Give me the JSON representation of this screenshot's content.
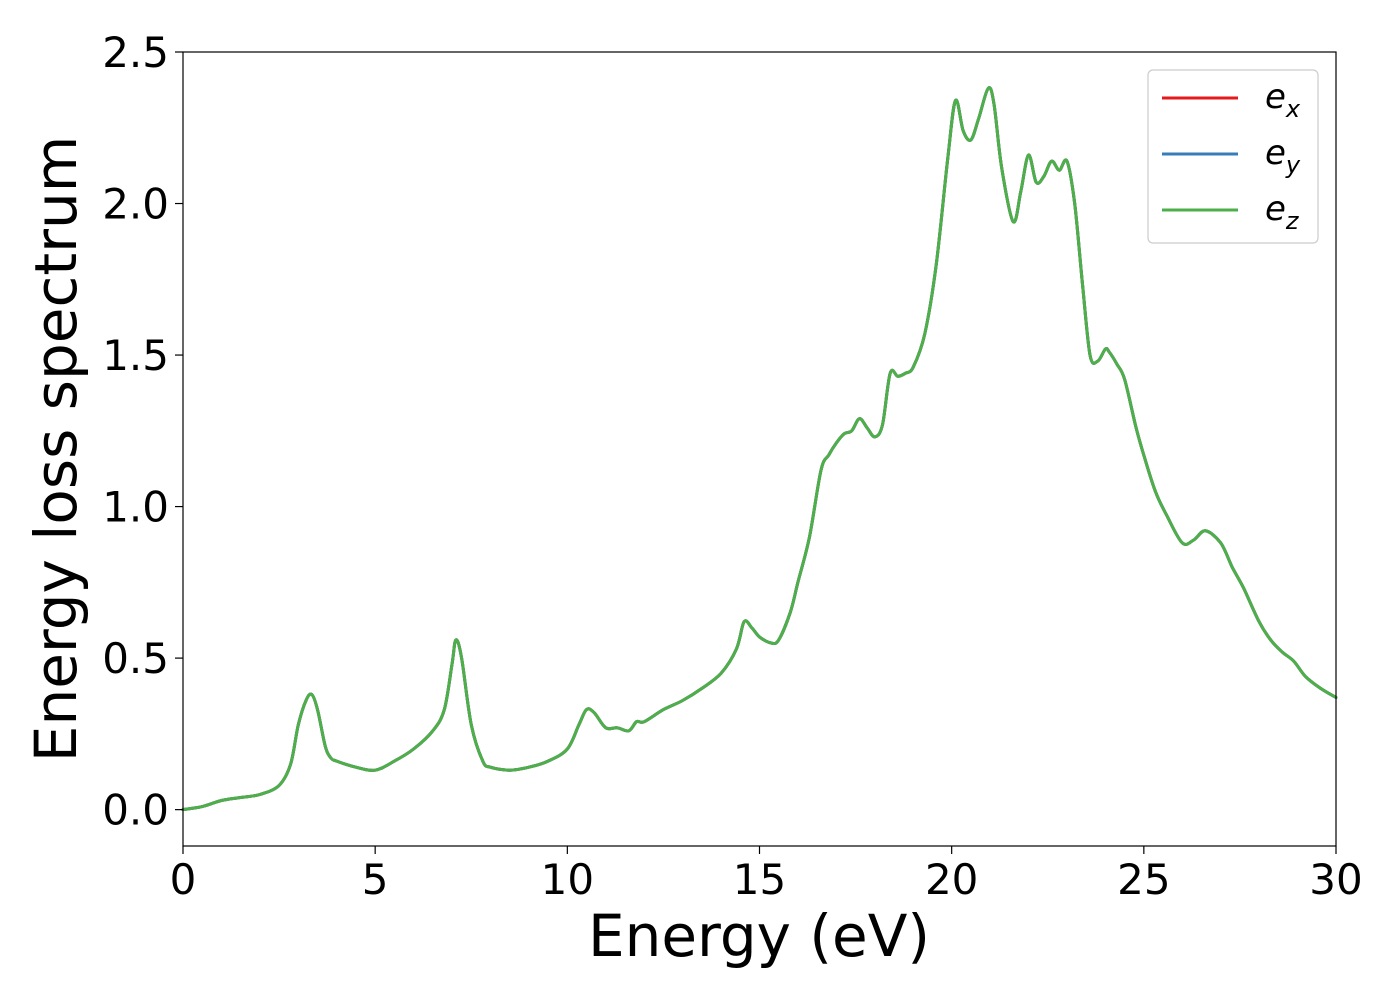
{
  "chart_data": {
    "type": "line",
    "xlabel": "Energy (eV)",
    "ylabel": "Energy loss spectrum",
    "xlim": [
      0,
      30
    ],
    "ylim": [
      -0.12,
      2.5
    ],
    "xticks": [
      0,
      5,
      10,
      15,
      20,
      25,
      30
    ],
    "xtick_labels": [
      "0",
      "5",
      "10",
      "15",
      "20",
      "25",
      "30"
    ],
    "yticks": [
      0.0,
      0.5,
      1.0,
      1.5,
      2.0,
      2.5
    ],
    "ytick_labels": [
      "0.0",
      "0.5",
      "1.0",
      "1.5",
      "2.0",
      "2.5"
    ],
    "grid": false,
    "legend_position": "top-right",
    "x": [
      0,
      0.5,
      1.0,
      1.5,
      2.0,
      2.5,
      2.8,
      3.0,
      3.2,
      3.35,
      3.5,
      3.7,
      3.85,
      4.0,
      4.5,
      5.0,
      5.5,
      6.0,
      6.5,
      6.8,
      7.0,
      7.1,
      7.25,
      7.5,
      7.8,
      8.0,
      8.5,
      9.0,
      9.5,
      10.0,
      10.3,
      10.5,
      10.7,
      11.0,
      11.3,
      11.6,
      11.8,
      12.0,
      12.5,
      13.0,
      13.5,
      14.0,
      14.4,
      14.6,
      14.8,
      15.0,
      15.3,
      15.5,
      15.8,
      16.0,
      16.3,
      16.6,
      16.8,
      17.0,
      17.2,
      17.4,
      17.6,
      17.8,
      18.0,
      18.2,
      18.4,
      18.6,
      18.8,
      19.0,
      19.3,
      19.6,
      19.9,
      20.1,
      20.3,
      20.5,
      20.7,
      20.95,
      21.1,
      21.3,
      21.6,
      21.8,
      22.0,
      22.2,
      22.4,
      22.6,
      22.8,
      23.0,
      23.2,
      23.4,
      23.6,
      23.8,
      24.0,
      24.1,
      24.3,
      24.5,
      24.8,
      25.0,
      25.3,
      25.6,
      26.0,
      26.3,
      26.6,
      27.0,
      27.3,
      27.6,
      28.0,
      28.3,
      28.6,
      28.9,
      29.2,
      29.6,
      30.0
    ],
    "series": [
      {
        "name": "e_x",
        "name_base": "e",
        "name_sub": "x",
        "color": "#e41a1c",
        "values": [
          0.0,
          0.01,
          0.03,
          0.04,
          0.05,
          0.08,
          0.15,
          0.28,
          0.36,
          0.38,
          0.33,
          0.21,
          0.17,
          0.16,
          0.14,
          0.13,
          0.16,
          0.2,
          0.26,
          0.33,
          0.48,
          0.56,
          0.5,
          0.28,
          0.16,
          0.14,
          0.13,
          0.14,
          0.16,
          0.2,
          0.28,
          0.33,
          0.32,
          0.27,
          0.27,
          0.26,
          0.29,
          0.29,
          0.33,
          0.36,
          0.4,
          0.45,
          0.53,
          0.62,
          0.6,
          0.57,
          0.55,
          0.56,
          0.65,
          0.75,
          0.9,
          1.12,
          1.17,
          1.21,
          1.24,
          1.25,
          1.29,
          1.26,
          1.23,
          1.27,
          1.44,
          1.43,
          1.44,
          1.46,
          1.57,
          1.8,
          2.15,
          2.34,
          2.24,
          2.21,
          2.28,
          2.38,
          2.33,
          2.12,
          1.94,
          2.04,
          2.16,
          2.07,
          2.09,
          2.14,
          2.11,
          2.14,
          2.0,
          1.74,
          1.5,
          1.48,
          1.52,
          1.51,
          1.47,
          1.42,
          1.26,
          1.17,
          1.05,
          0.97,
          0.88,
          0.89,
          0.92,
          0.88,
          0.8,
          0.73,
          0.62,
          0.56,
          0.52,
          0.49,
          0.44,
          0.4,
          0.37
        ]
      },
      {
        "name": "e_y",
        "name_base": "e",
        "name_sub": "y",
        "color": "#377eb8",
        "values": [
          0.0,
          0.01,
          0.03,
          0.04,
          0.05,
          0.08,
          0.15,
          0.28,
          0.36,
          0.38,
          0.33,
          0.21,
          0.17,
          0.16,
          0.14,
          0.13,
          0.16,
          0.2,
          0.26,
          0.33,
          0.48,
          0.56,
          0.5,
          0.28,
          0.16,
          0.14,
          0.13,
          0.14,
          0.16,
          0.2,
          0.28,
          0.33,
          0.32,
          0.27,
          0.27,
          0.26,
          0.29,
          0.29,
          0.33,
          0.36,
          0.4,
          0.45,
          0.53,
          0.62,
          0.6,
          0.57,
          0.55,
          0.56,
          0.65,
          0.75,
          0.9,
          1.12,
          1.17,
          1.21,
          1.24,
          1.25,
          1.29,
          1.26,
          1.23,
          1.27,
          1.44,
          1.43,
          1.44,
          1.46,
          1.57,
          1.8,
          2.15,
          2.34,
          2.24,
          2.21,
          2.28,
          2.38,
          2.33,
          2.12,
          1.94,
          2.04,
          2.16,
          2.07,
          2.09,
          2.14,
          2.11,
          2.14,
          2.0,
          1.74,
          1.5,
          1.48,
          1.52,
          1.51,
          1.47,
          1.42,
          1.26,
          1.17,
          1.05,
          0.97,
          0.88,
          0.89,
          0.92,
          0.88,
          0.8,
          0.73,
          0.62,
          0.56,
          0.52,
          0.49,
          0.44,
          0.4,
          0.37
        ]
      },
      {
        "name": "e_z",
        "name_base": "e",
        "name_sub": "z",
        "color": "#4daf4a",
        "values": [
          0.0,
          0.01,
          0.03,
          0.04,
          0.05,
          0.08,
          0.15,
          0.28,
          0.36,
          0.38,
          0.33,
          0.21,
          0.17,
          0.16,
          0.14,
          0.13,
          0.16,
          0.2,
          0.26,
          0.33,
          0.48,
          0.56,
          0.5,
          0.28,
          0.16,
          0.14,
          0.13,
          0.14,
          0.16,
          0.2,
          0.28,
          0.33,
          0.32,
          0.27,
          0.27,
          0.26,
          0.29,
          0.29,
          0.33,
          0.36,
          0.4,
          0.45,
          0.53,
          0.62,
          0.6,
          0.57,
          0.55,
          0.56,
          0.65,
          0.75,
          0.9,
          1.12,
          1.17,
          1.21,
          1.24,
          1.25,
          1.29,
          1.26,
          1.23,
          1.27,
          1.44,
          1.43,
          1.44,
          1.46,
          1.57,
          1.8,
          2.15,
          2.34,
          2.24,
          2.21,
          2.28,
          2.38,
          2.33,
          2.12,
          1.94,
          2.04,
          2.16,
          2.07,
          2.09,
          2.14,
          2.11,
          2.14,
          2.0,
          1.74,
          1.5,
          1.48,
          1.52,
          1.51,
          1.47,
          1.42,
          1.26,
          1.17,
          1.05,
          0.97,
          0.88,
          0.89,
          0.92,
          0.88,
          0.8,
          0.73,
          0.62,
          0.56,
          0.52,
          0.49,
          0.44,
          0.4,
          0.37
        ]
      }
    ]
  }
}
